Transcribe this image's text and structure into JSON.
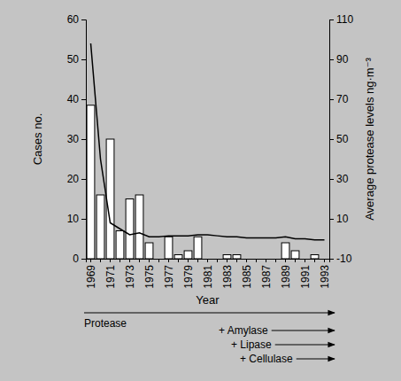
{
  "chart_data": {
    "type": "bar",
    "x_label": "Year",
    "y_label": "Cases no.",
    "y2_label": "Average protease levels ng·m⁻³",
    "categories": [
      "1969",
      null,
      "1971",
      null,
      "1973",
      null,
      "1975",
      null,
      "1977",
      null,
      "1979",
      null,
      "1981",
      null,
      "1983",
      null,
      "1985",
      null,
      "1987",
      null,
      "1989",
      null,
      "1991",
      null,
      "1993"
    ],
    "series": [
      {
        "type": "bar",
        "color": "#ffffff",
        "values": [
          38.5,
          16,
          30,
          7,
          15,
          16,
          4,
          0,
          5.5,
          1,
          2,
          5.5,
          0,
          0,
          1,
          1,
          0,
          0,
          0,
          0,
          4,
          2,
          0,
          1,
          0
        ]
      },
      {
        "type": "line",
        "axis": "y2",
        "color": "#000000",
        "values": [
          98,
          40,
          8,
          5,
          2,
          3,
          1,
          1,
          1.5,
          1.5,
          1.5,
          2,
          2,
          1.5,
          1,
          1,
          0.5,
          0.5,
          0.5,
          0.5,
          1,
          0,
          0,
          -0.5,
          -0.5
        ]
      }
    ],
    "ylim": [
      0,
      60
    ],
    "yticks": [
      0,
      10,
      20,
      30,
      40,
      50,
      60
    ],
    "y2lim": [
      -10,
      110
    ],
    "y2ticks": [
      -10,
      10,
      30,
      50,
      70,
      90,
      110
    ],
    "grid": false,
    "annotations": [
      "Protease",
      "+ Amylase",
      "+ Lipase",
      "+ Cellulase"
    ]
  }
}
